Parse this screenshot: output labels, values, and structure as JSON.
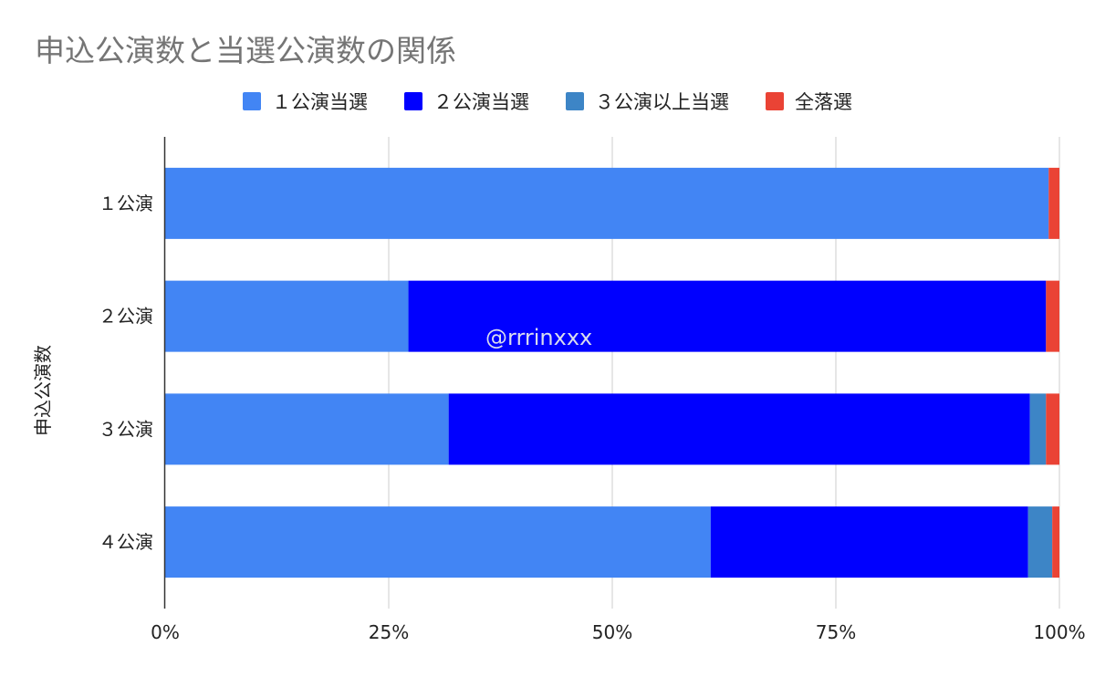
{
  "watermark": "@rrrinxxx",
  "chart_data": {
    "type": "bar",
    "orientation": "horizontal",
    "stacked": "percent",
    "title": "申込公演数と当選公演数の関係",
    "ylabel": "申込公演数",
    "xlabel": "",
    "xlim": [
      0,
      100
    ],
    "x_ticks": [
      "0%",
      "25%",
      "50%",
      "75%",
      "100%"
    ],
    "grid": true,
    "legend_position": "top",
    "categories": [
      "１公演",
      "２公演",
      "３公演",
      "４公演"
    ],
    "series": [
      {
        "name": "１公演当選",
        "color": "#4285f4",
        "values": [
          98.8,
          27.2,
          31.7,
          61.0
        ]
      },
      {
        "name": "２公演当選",
        "color": "#0000ff",
        "values": [
          0,
          71.3,
          65.0,
          35.5
        ]
      },
      {
        "name": "３公演以上当選",
        "color": "#3d85c6",
        "values": [
          0,
          0,
          1.8,
          2.7
        ]
      },
      {
        "name": "全落選",
        "color": "#ea4335",
        "values": [
          1.2,
          1.5,
          1.5,
          0.8
        ]
      }
    ]
  }
}
